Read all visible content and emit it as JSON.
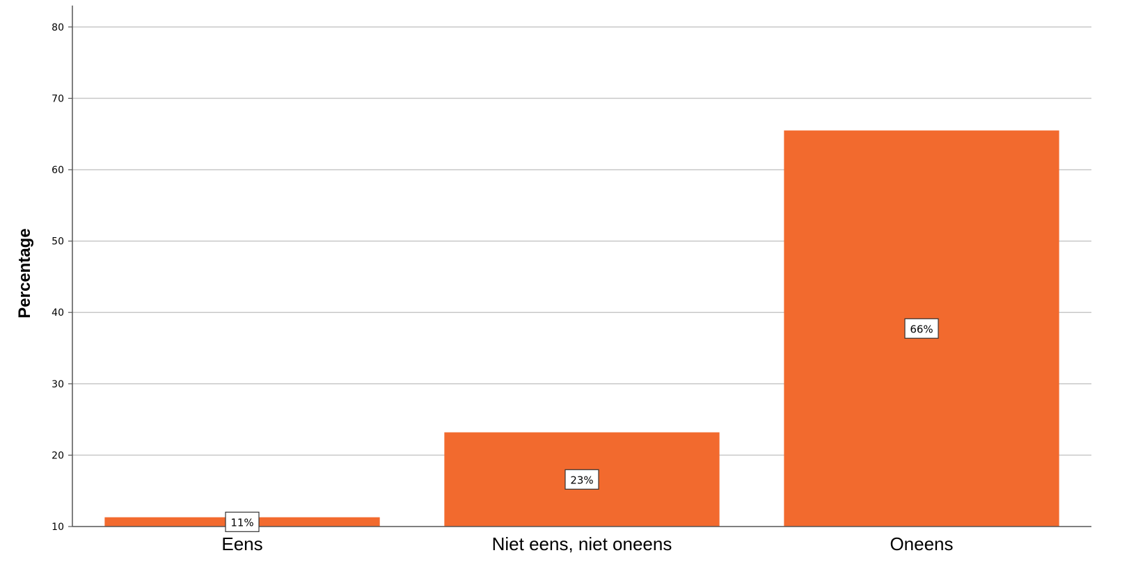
{
  "chart_data": {
    "type": "bar",
    "title": "",
    "xlabel": "",
    "ylabel": "Percentage",
    "categories": [
      "Eens",
      "Niet eens, niet oneens",
      "Oneens"
    ],
    "values": [
      11.3,
      23.2,
      65.5
    ],
    "data_labels": [
      "11%",
      "23%",
      "66%"
    ],
    "ylim": [
      10,
      83
    ],
    "yticks": [
      10,
      20,
      30,
      40,
      50,
      60,
      70,
      80
    ],
    "grid": true,
    "legend": "none",
    "bar_color": "#f26a2e",
    "grid_color": "#c8c8c8"
  }
}
